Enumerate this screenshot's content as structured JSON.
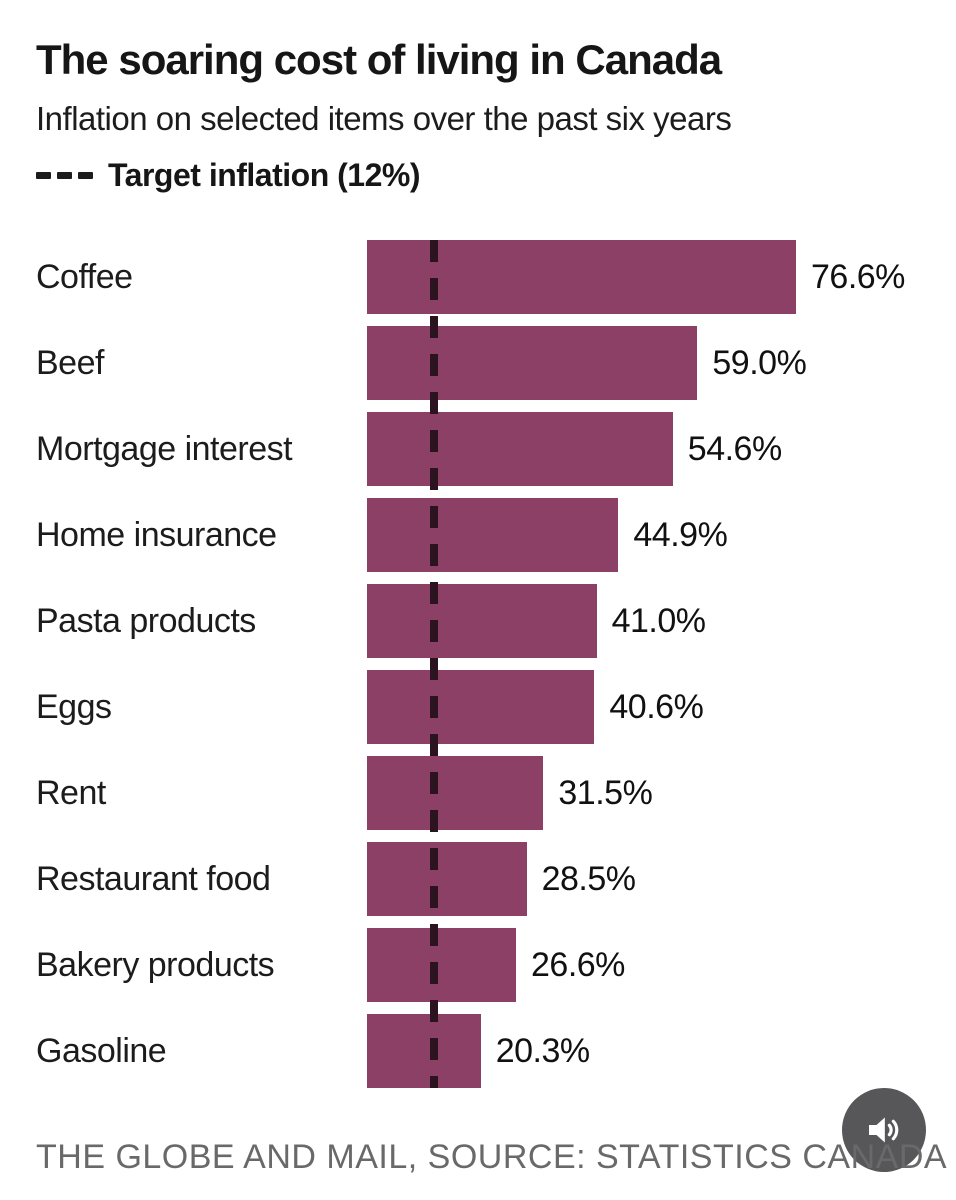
{
  "header": {
    "title": "The soaring cost of living in Canada",
    "subtitle": "Inflation on selected items over the past six years",
    "legend": {
      "label": "Target inflation (12%)"
    }
  },
  "chart_data": {
    "type": "bar",
    "orientation": "horizontal",
    "title": "The soaring cost of living in Canada",
    "subtitle": "Inflation on selected items over the past six years",
    "categories": [
      "Coffee",
      "Beef",
      "Mortgage interest",
      "Home insurance",
      "Pasta products",
      "Eggs",
      "Rent",
      "Restaurant food",
      "Bakery products",
      "Gasoline"
    ],
    "values": [
      76.6,
      59.0,
      54.6,
      44.9,
      41.0,
      40.6,
      31.5,
      28.5,
      26.6,
      20.3
    ],
    "value_labels": [
      "76.6%",
      "59.0%",
      "54.6%",
      "44.9%",
      "41.0%",
      "40.6%",
      "31.5%",
      "28.5%",
      "26.6%",
      "20.3%"
    ],
    "unit": "%",
    "xlim": [
      0,
      80
    ],
    "grid": false,
    "legend_position": "top-left",
    "target_line": {
      "label": "Target inflation (12%)",
      "value": 12,
      "style": "dashed"
    },
    "colors": {
      "bar": "#8c4066",
      "target_line": "#2b1420",
      "text": "#1c1c1c",
      "footer_text": "#696969",
      "audio_circle": "#57575a",
      "audio_glyph": "#ffffff"
    }
  },
  "footer": {
    "credit": "THE GLOBE AND MAIL, SOURCE: STATISTICS CANADA"
  },
  "audio_button": {
    "icon": "speaker-icon"
  }
}
